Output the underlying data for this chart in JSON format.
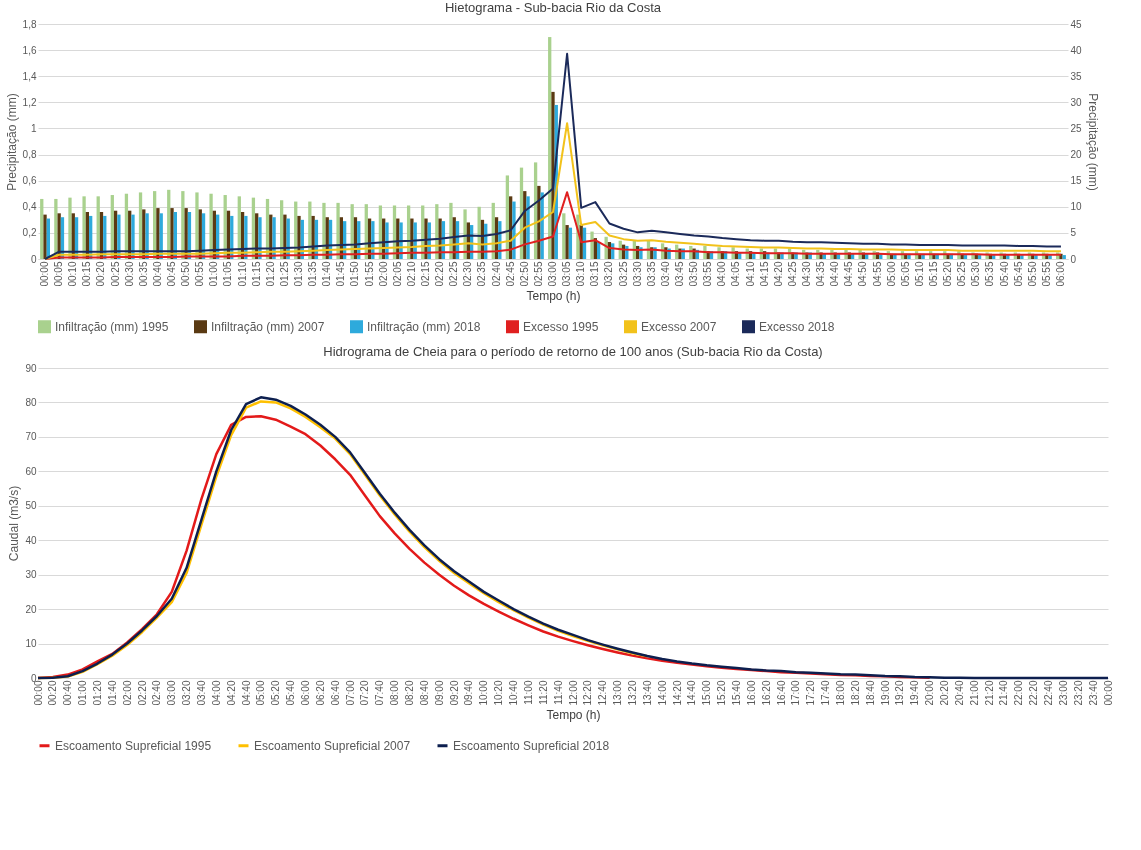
{
  "chart_data": [
    {
      "type": "bar",
      "title": "Hietograma - Sub-bacia Rio da Costa",
      "xlabel": "Tempo (h)",
      "ylabel": "Precipitação  (mm)",
      "y2label": "Precipitação (mm)",
      "categories": [
        "00:00",
        "00:05",
        "00:10",
        "00:15",
        "00:20",
        "00:25",
        "00:30",
        "00:35",
        "00:40",
        "00:45",
        "00:50",
        "00:55",
        "01:00",
        "01:05",
        "01:10",
        "01:15",
        "01:20",
        "01:25",
        "01:30",
        "01:35",
        "01:40",
        "01:45",
        "01:50",
        "01:55",
        "02:00",
        "02:05",
        "02:10",
        "02:15",
        "02:20",
        "02:25",
        "02:30",
        "02:35",
        "02:40",
        "02:45",
        "02:50",
        "02:55",
        "03:00",
        "03:05",
        "03:10",
        "03:15",
        "03:20",
        "03:25",
        "03:30",
        "03:35",
        "03:40",
        "03:45",
        "03:50",
        "03:55",
        "04:00",
        "04:05",
        "04:10",
        "04:15",
        "04:20",
        "04:25",
        "04:30",
        "04:35",
        "04:40",
        "04:45",
        "04:50",
        "04:55",
        "05:00",
        "05:05",
        "05:10",
        "05:15",
        "05:20",
        "05:25",
        "05:30",
        "05:35",
        "05:40",
        "05:45",
        "05:50",
        "05:55",
        "06:00"
      ],
      "ylim": [
        0,
        1.8
      ],
      "yticks": [
        0,
        {
          "value": 0.2,
          "label": "0,2"
        },
        {
          "value": 0.4,
          "label": "0,4"
        },
        {
          "value": 0.6,
          "label": "0,6"
        },
        {
          "value": 0.8,
          "label": "0,8"
        },
        1,
        {
          "value": 1.2,
          "label": "1,2"
        },
        {
          "value": 1.4,
          "label": "1,4"
        },
        {
          "value": 1.6,
          "label": "1,6"
        },
        {
          "value": 1.8,
          "label": "1,8"
        }
      ],
      "y2lim": [
        0,
        45
      ],
      "y2ticks": [
        0,
        5,
        10,
        15,
        20,
        25,
        30,
        35,
        40,
        45
      ],
      "grid": "y",
      "legend": "bottom",
      "series": [
        {
          "name": "Infiltração (mm) 1995",
          "type": "bar",
          "color": "#a9d18e",
          "values": [
            0.46,
            0.46,
            0.47,
            0.48,
            0.48,
            0.49,
            0.5,
            0.51,
            0.52,
            0.53,
            0.52,
            0.51,
            0.5,
            0.49,
            0.48,
            0.47,
            0.46,
            0.45,
            0.44,
            0.44,
            0.43,
            0.43,
            0.42,
            0.42,
            0.41,
            0.41,
            0.41,
            0.41,
            0.42,
            0.43,
            0.38,
            0.4,
            0.43,
            0.64,
            0.7,
            0.74,
            1.7,
            0.35,
            0.34,
            0.21,
            0.17,
            0.14,
            0.14,
            0.14,
            0.12,
            0.11,
            0.1,
            0.1,
            0.09,
            0.09,
            0.08,
            0.08,
            0.08,
            0.08,
            0.07,
            0.07,
            0.07,
            0.07,
            0.07,
            0.06,
            0.06,
            0.06,
            0.06,
            0.06,
            0.06,
            0.06,
            0.05,
            0.05,
            0.05,
            0.05,
            0.05,
            0.05,
            0.05
          ]
        },
        {
          "name": "Infiltração (mm) 2007",
          "type": "bar",
          "color": "#5a3a13",
          "values": [
            0.34,
            0.35,
            0.35,
            0.36,
            0.36,
            0.37,
            0.37,
            0.38,
            0.39,
            0.39,
            0.39,
            0.38,
            0.37,
            0.37,
            0.36,
            0.35,
            0.34,
            0.34,
            0.33,
            0.33,
            0.32,
            0.32,
            0.32,
            0.31,
            0.31,
            0.31,
            0.31,
            0.31,
            0.31,
            0.32,
            0.28,
            0.3,
            0.32,
            0.48,
            0.52,
            0.56,
            1.28,
            0.26,
            0.26,
            0.16,
            0.13,
            0.11,
            0.1,
            0.09,
            0.09,
            0.08,
            0.08,
            0.06,
            0.06,
            0.06,
            0.06,
            0.06,
            0.05,
            0.05,
            0.05,
            0.05,
            0.05,
            0.05,
            0.05,
            0.05,
            0.04,
            0.04,
            0.04,
            0.04,
            0.04,
            0.04,
            0.04,
            0.04,
            0.04,
            0.04,
            0.04,
            0.04,
            0.04
          ]
        },
        {
          "name": "Infiltração (mm) 2018",
          "type": "bar",
          "color": "#2eaadc",
          "values": [
            0.31,
            0.32,
            0.32,
            0.33,
            0.33,
            0.34,
            0.34,
            0.35,
            0.35,
            0.36,
            0.36,
            0.35,
            0.34,
            0.33,
            0.33,
            0.32,
            0.32,
            0.31,
            0.3,
            0.3,
            0.3,
            0.29,
            0.29,
            0.29,
            0.28,
            0.28,
            0.28,
            0.28,
            0.29,
            0.29,
            0.26,
            0.27,
            0.29,
            0.44,
            0.48,
            0.51,
            1.18,
            0.24,
            0.24,
            0.13,
            0.12,
            0.1,
            0.09,
            0.09,
            0.08,
            0.08,
            0.07,
            0.06,
            0.06,
            0.05,
            0.05,
            0.05,
            0.05,
            0.05,
            0.05,
            0.04,
            0.04,
            0.04,
            0.04,
            0.04,
            0.04,
            0.04,
            0.04,
            0.04,
            0.04,
            0.03,
            0.03,
            0.03,
            0.03,
            0.03,
            0.03,
            0.03,
            0.03
          ]
        },
        {
          "name": "Excesso 1995",
          "type": "line",
          "axis": "y2",
          "color": "#e02020",
          "values": [
            0,
            0.3,
            0.3,
            0.3,
            0.3,
            0.4,
            0.4,
            0.4,
            0.4,
            0.4,
            0.5,
            0.5,
            0.5,
            0.5,
            0.6,
            0.6,
            0.6,
            0.7,
            0.7,
            0.8,
            0.8,
            0.9,
            0.9,
            1.0,
            1.0,
            1.1,
            1.2,
            1.2,
            1.3,
            1.3,
            1.4,
            1.4,
            1.5,
            1.8,
            2.8,
            3.5,
            4.3,
            12.8,
            3.2,
            3.6,
            2.1,
            1.8,
            1.7,
            1.8,
            1.6,
            1.5,
            1.5,
            1.3,
            1.3,
            1.2,
            1.2,
            1.1,
            1.1,
            1.1,
            1.0,
            1.0,
            1.0,
            1.0,
            1.0,
            1.0,
            0.9,
            0.9,
            0.9,
            0.9,
            0.9,
            0.9,
            0.9,
            0.8,
            0.8,
            0.8,
            0.8,
            0.8,
            0.8
          ]
        },
        {
          "name": "Excesso 2007",
          "type": "line",
          "axis": "y2",
          "color": "#f2c21b",
          "values": [
            0,
            0.8,
            0.8,
            0.8,
            0.9,
            0.9,
            0.9,
            0.9,
            1.0,
            1.0,
            1.0,
            1.0,
            1.1,
            1.2,
            1.2,
            1.3,
            1.4,
            1.4,
            1.5,
            1.6,
            1.7,
            1.8,
            1.9,
            2.0,
            2.1,
            2.2,
            2.3,
            2.5,
            2.6,
            2.8,
            3.0,
            2.8,
            3.0,
            3.5,
            6.0,
            7.2,
            9.0,
            26.0,
            6.5,
            7.1,
            4.5,
            3.8,
            3.5,
            3.6,
            3.3,
            3.1,
            2.9,
            2.7,
            2.5,
            2.4,
            2.3,
            2.2,
            2.2,
            2.1,
            2.0,
            2.0,
            1.9,
            1.9,
            1.8,
            1.8,
            1.8,
            1.7,
            1.7,
            1.7,
            1.7,
            1.6,
            1.6,
            1.6,
            1.6,
            1.6,
            1.6,
            1.5,
            1.5
          ]
        },
        {
          "name": "Excesso 2018",
          "type": "line",
          "axis": "y2",
          "color": "#1b2a5a",
          "values": [
            0,
            1.4,
            1.4,
            1.4,
            1.4,
            1.5,
            1.5,
            1.5,
            1.5,
            1.5,
            1.5,
            1.6,
            1.7,
            1.8,
            1.9,
            2.0,
            2.0,
            2.1,
            2.2,
            2.4,
            2.6,
            2.7,
            2.8,
            3.0,
            3.2,
            3.4,
            3.5,
            3.7,
            3.9,
            4.2,
            4.5,
            4.4,
            4.8,
            5.5,
            9.2,
            11.2,
            13.5,
            39.3,
            9.8,
            10.9,
            6.8,
            5.8,
            5.1,
            5.4,
            5.1,
            4.8,
            4.5,
            4.3,
            4.0,
            3.8,
            3.6,
            3.5,
            3.5,
            3.3,
            3.2,
            3.2,
            3.1,
            3.0,
            2.9,
            2.9,
            2.8,
            2.8,
            2.7,
            2.7,
            2.7,
            2.6,
            2.6,
            2.6,
            2.6,
            2.5,
            2.5,
            2.4,
            2.4
          ]
        }
      ]
    },
    {
      "type": "line",
      "title": "Hidrograma de Cheia para o período de retorno de 100 anos (Sub-bacia Rio da Costa)",
      "xlabel": "Tempo (h)",
      "ylabel": "Caudal (m3/s)",
      "categories": [
        "00:00",
        "00:20",
        "00:40",
        "01:00",
        "01:20",
        "01:40",
        "02:00",
        "02:20",
        "02:40",
        "03:00",
        "03:20",
        "03:40",
        "04:00",
        "04:20",
        "04:40",
        "05:00",
        "05:20",
        "05:40",
        "06:00",
        "06:20",
        "06:40",
        "07:00",
        "07:20",
        "07:40",
        "08:00",
        "08:20",
        "08:40",
        "09:00",
        "09:20",
        "09:40",
        "10:00",
        "10:20",
        "10:40",
        "11:00",
        "11:20",
        "11:40",
        "12:00",
        "12:20",
        "12:40",
        "13:00",
        "13:20",
        "13:40",
        "14:00",
        "14:20",
        "14:40",
        "15:00",
        "15:20",
        "15:40",
        "16:00",
        "16:20",
        "16:40",
        "17:00",
        "17:20",
        "17:40",
        "18:00",
        "18:20",
        "18:40",
        "19:00",
        "19:20",
        "19:40",
        "20:00",
        "20:20",
        "20:40",
        "21:00",
        "21:20",
        "21:40",
        "22:00",
        "22:20",
        "22:40",
        "23:00",
        "23:20",
        "23:40",
        "00:00"
      ],
      "ylim": [
        0,
        90
      ],
      "yticks": [
        0,
        10,
        20,
        30,
        40,
        50,
        60,
        70,
        80,
        90
      ],
      "grid": "y",
      "legend": "bottom",
      "series": [
        {
          "name": "Escoamento Supreficial 1995",
          "color": "#e31a1a",
          "values": [
            0,
            0.3,
            1.0,
            2.5,
            4.8,
            7.0,
            10.3,
            14.2,
            18.5,
            25,
            37,
            52,
            65,
            73.5,
            75.8,
            76,
            75,
            73,
            70.8,
            67.5,
            63.5,
            59,
            53,
            47,
            42,
            37.5,
            33.5,
            30,
            26.8,
            24,
            21.5,
            19.3,
            17.2,
            15.3,
            13.5,
            12,
            10.7,
            9.5,
            8.4,
            7.4,
            6.5,
            5.7,
            5.0,
            4.4,
            3.9,
            3.4,
            3.0,
            2.6,
            2.3,
            2.0,
            1.7,
            1.5,
            1.3,
            1.1,
            0.9,
            0.8,
            0.6,
            0.5,
            0.3,
            0.2,
            0.1,
            null,
            null,
            null,
            null,
            null,
            null,
            null,
            null,
            null,
            null,
            null,
            null
          ]
        },
        {
          "name": "Escoamento Supreficial 2007",
          "color": "#ffc000",
          "values": [
            0,
            0.1,
            0.4,
            1.8,
            4.0,
            6.5,
            9.6,
            13.3,
            17.5,
            22,
            30.5,
            44.5,
            58.5,
            70.5,
            78.5,
            80.3,
            80,
            78.3,
            75.8,
            72.8,
            69.5,
            65,
            59,
            53,
            47.5,
            42.5,
            38,
            34,
            30.5,
            27.5,
            24.6,
            22,
            19.7,
            17.5,
            15.5,
            13.7,
            12.2,
            10.8,
            9.5,
            8.3,
            7.2,
            6.3,
            null,
            null,
            null,
            null,
            null,
            null,
            null,
            null,
            null,
            null,
            null,
            null,
            null,
            null,
            null,
            null,
            null,
            null,
            null,
            null,
            null,
            null,
            null,
            null,
            null,
            null,
            null,
            null,
            null,
            null,
            null
          ]
        },
        {
          "name": "Escoamento Supreficial 2018",
          "color": "#0d1f4f",
          "values": [
            0,
            0.1,
            0.5,
            2.0,
            4.2,
            6.8,
            10,
            13.8,
            18,
            23,
            32,
            46,
            60,
            72,
            79.5,
            81.5,
            80.8,
            79,
            76.5,
            73.5,
            70,
            65.5,
            59.5,
            53.5,
            48,
            43,
            38.5,
            34.5,
            31,
            28,
            25,
            22.5,
            20,
            17.8,
            15.8,
            14,
            12.5,
            11,
            9.7,
            8.5,
            7.4,
            6.4,
            5.5,
            4.8,
            4.2,
            3.7,
            3.3,
            2.9,
            2.5,
            2.2,
            2.0,
            1.7,
            1.5,
            1.3,
            1.1,
            1.0,
            0.8,
            0.6,
            0.5,
            0.3,
            0.2,
            0.1,
            0.1,
            0,
            0,
            0,
            0,
            0,
            0,
            0,
            0,
            0,
            0
          ]
        }
      ]
    }
  ]
}
